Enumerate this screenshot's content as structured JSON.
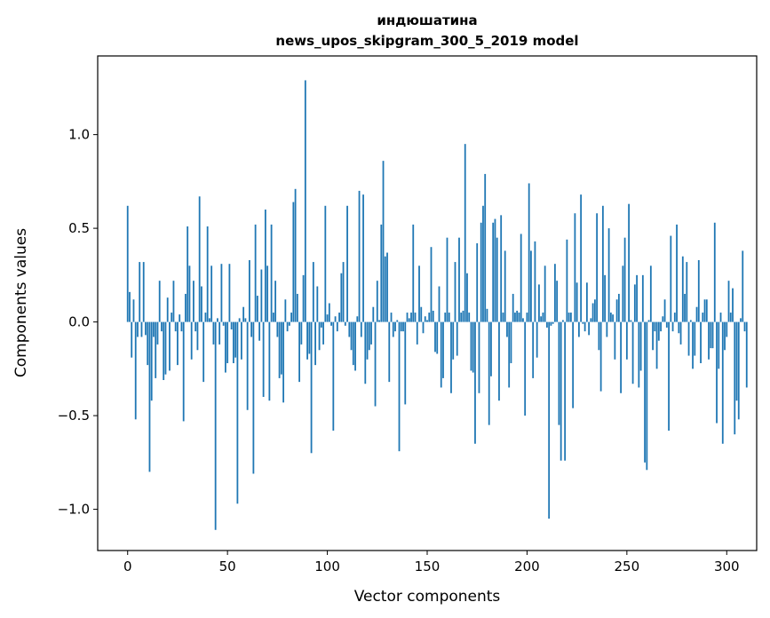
{
  "chart_data": {
    "type": "bar",
    "title_line1": "индюшатина",
    "title_line2": "news_upos_skipgram_300_5_2019 model",
    "xlabel": "Vector components",
    "ylabel": "Components values",
    "xlim": [
      -15,
      315
    ],
    "ylim": [
      -1.22,
      1.42
    ],
    "xticks": [
      0,
      50,
      100,
      150,
      200,
      250,
      300
    ],
    "xtick_labels": [
      "0",
      "50",
      "100",
      "150",
      "200",
      "250",
      "300"
    ],
    "yticks": [
      -1.0,
      -0.5,
      0.0,
      0.5,
      1.0
    ],
    "ytick_labels": [
      "−1.0",
      "−0.5",
      "0.0",
      "0.5",
      "1.0"
    ],
    "bar_color": "#1f77b4",
    "values": [
      0.62,
      0.16,
      -0.19,
      0.12,
      -0.52,
      -0.08,
      0.32,
      -0.08,
      0.32,
      -0.07,
      -0.23,
      -0.8,
      -0.42,
      -0.08,
      -0.3,
      -0.12,
      0.22,
      -0.05,
      -0.31,
      -0.28,
      0.13,
      -0.26,
      0.05,
      0.22,
      -0.05,
      -0.23,
      0.04,
      -0.05,
      -0.53,
      0.15,
      0.51,
      0.3,
      -0.2,
      0.22,
      -0.05,
      -0.15,
      0.67,
      0.19,
      -0.32,
      0.05,
      0.51,
      0.02,
      0.3,
      -0.12,
      -1.11,
      0.02,
      -0.12,
      0.31,
      -0.02,
      -0.27,
      -0.22,
      0.31,
      -0.04,
      -0.22,
      -0.19,
      -0.97,
      0.02,
      -0.2,
      0.08,
      0.02,
      -0.47,
      0.33,
      -0.08,
      -0.81,
      0.52,
      0.14,
      -0.1,
      0.28,
      -0.4,
      0.6,
      0.3,
      -0.42,
      0.52,
      0.05,
      0.22,
      -0.08,
      -0.3,
      -0.28,
      -0.43,
      0.12,
      -0.05,
      -0.02,
      0.05,
      0.64,
      0.71,
      0.15,
      -0.32,
      -0.12,
      0.25,
      1.29,
      -0.2,
      -0.17,
      -0.7,
      0.32,
      -0.23,
      0.19,
      -0.15,
      -0.03,
      -0.12,
      0.62,
      0.04,
      0.1,
      -0.02,
      -0.58,
      0.03,
      -0.05,
      0.05,
      0.26,
      0.32,
      -0.02,
      0.62,
      -0.08,
      -0.15,
      -0.23,
      -0.26,
      0.03,
      0.7,
      -0.08,
      0.68,
      -0.33,
      -0.2,
      -0.15,
      -0.12,
      0.08,
      -0.45,
      0.22,
      0.01,
      0.52,
      0.86,
      0.35,
      0.37,
      -0.32,
      0.05,
      -0.08,
      -0.05,
      0.01,
      -0.69,
      -0.05,
      -0.05,
      -0.44,
      0.05,
      0.02,
      0.05,
      0.52,
      0.05,
      -0.12,
      0.3,
      0.08,
      -0.06,
      0.03,
      0.01,
      0.05,
      0.4,
      0.06,
      -0.16,
      -0.17,
      0.19,
      -0.35,
      -0.3,
      0.05,
      0.45,
      0.05,
      -0.38,
      -0.2,
      0.32,
      -0.18,
      0.45,
      0.05,
      0.06,
      0.95,
      0.26,
      0.05,
      -0.26,
      -0.27,
      -0.65,
      0.42,
      -0.38,
      0.53,
      0.62,
      0.79,
      0.07,
      -0.55,
      -0.29,
      0.53,
      0.55,
      0.45,
      -0.42,
      0.57,
      0.05,
      0.38,
      -0.08,
      -0.35,
      -0.22,
      0.15,
      0.05,
      0.06,
      0.05,
      0.47,
      0.02,
      -0.5,
      0.05,
      0.74,
      0.38,
      -0.3,
      0.43,
      -0.19,
      0.2,
      0.03,
      0.05,
      0.3,
      -0.03,
      -1.05,
      -0.02,
      -0.01,
      0.31,
      0.22,
      -0.55,
      -0.74,
      0.01,
      -0.74,
      0.44,
      0.05,
      0.05,
      -0.46,
      0.58,
      0.21,
      -0.08,
      0.68,
      -0.01,
      -0.05,
      0.21,
      -0.07,
      0.02,
      0.1,
      0.12,
      0.58,
      -0.15,
      -0.37,
      0.62,
      0.25,
      -0.08,
      0.5,
      0.05,
      0.04,
      -0.2,
      0.12,
      0.15,
      -0.38,
      0.3,
      0.45,
      -0.2,
      0.63,
      0.01,
      -0.33,
      0.2,
      0.25,
      -0.35,
      -0.26,
      0.25,
      -0.75,
      -0.79,
      0.01,
      0.3,
      -0.15,
      -0.05,
      -0.25,
      -0.1,
      -0.05,
      0.03,
      0.12,
      -0.03,
      -0.58,
      0.46,
      -0.05,
      0.05,
      0.52,
      -0.06,
      -0.12,
      0.35,
      0.15,
      0.32,
      -0.18,
      0.01,
      -0.25,
      -0.18,
      0.08,
      0.33,
      -0.22,
      0.05,
      0.12,
      0.12,
      -0.2,
      -0.14,
      -0.14,
      0.53,
      -0.54,
      -0.25,
      0.05,
      -0.65,
      -0.15,
      -0.08,
      0.22,
      0.05,
      0.18,
      -0.6,
      -0.42,
      -0.52,
      0.02,
      0.38,
      -0.05,
      -0.35
    ]
  }
}
